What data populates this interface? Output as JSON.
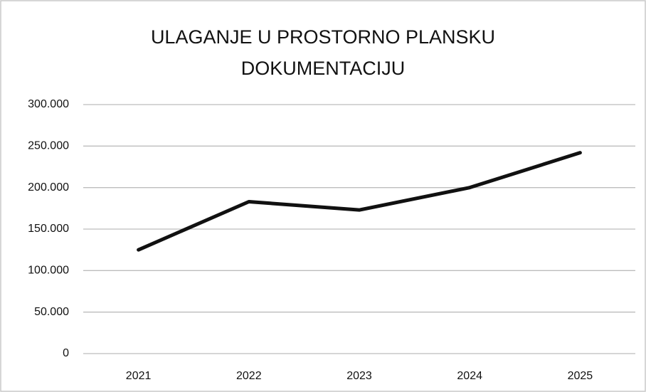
{
  "chart_data": {
    "type": "line",
    "title": "ULAGANJE U PROSTORNO PLANSKU DOKUMENTACIJU",
    "categories": [
      "2021",
      "2022",
      "2023",
      "2024",
      "2025"
    ],
    "values": [
      125000,
      183000,
      173000,
      200000,
      242000
    ],
    "color": "#111111",
    "ylim": [
      0,
      300000
    ],
    "yticks": [
      0,
      {
        "value": 50000,
        "label": "50.000"
      },
      {
        "value": 100000,
        "label": "100.000"
      },
      {
        "value": 150000,
        "label": "150.000"
      },
      {
        "value": 200000,
        "label": "200.000"
      },
      {
        "value": 250000,
        "label": "250.000"
      },
      {
        "value": 300000,
        "label": "300.000"
      }
    ],
    "grid": true
  }
}
